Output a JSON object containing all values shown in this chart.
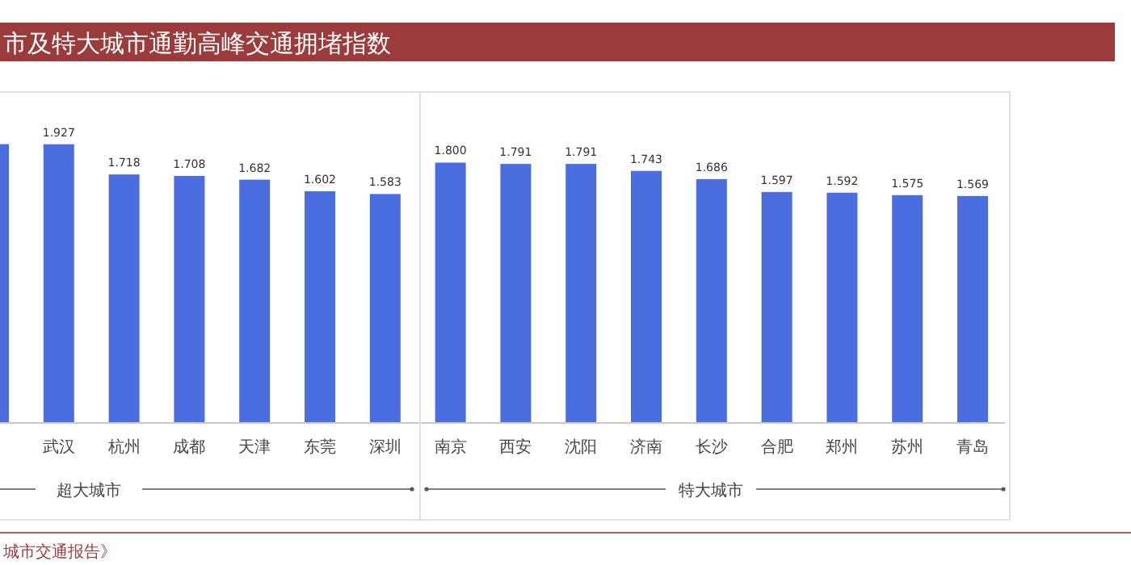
{
  "chart_data": {
    "type": "bar",
    "title": "市及特大城市通勤高峰交通拥堵指数",
    "categories": [
      null,
      "武汉",
      "杭州",
      "成都",
      "天津",
      "东莞",
      "深圳",
      "南京",
      "西安",
      "沈阳",
      "济南",
      "长沙",
      "合肥",
      "郑州",
      "苏州",
      "青岛"
    ],
    "values": [
      1.928,
      1.927,
      1.718,
      1.708,
      1.682,
      1.602,
      1.583,
      1.8,
      1.791,
      1.791,
      1.743,
      1.686,
      1.597,
      1.592,
      1.575,
      1.569
    ],
    "value_labels": [
      null,
      "1.927",
      "1.718",
      "1.708",
      "1.682",
      "1.602",
      "1.583",
      "1.800",
      "1.791",
      "1.791",
      "1.743",
      "1.686",
      "1.597",
      "1.592",
      "1.575",
      "1.569"
    ],
    "color": "#4a6ee0",
    "annotations": [
      "超大城市",
      "特大城市",
      "城市交通报告》"
    ]
  }
}
